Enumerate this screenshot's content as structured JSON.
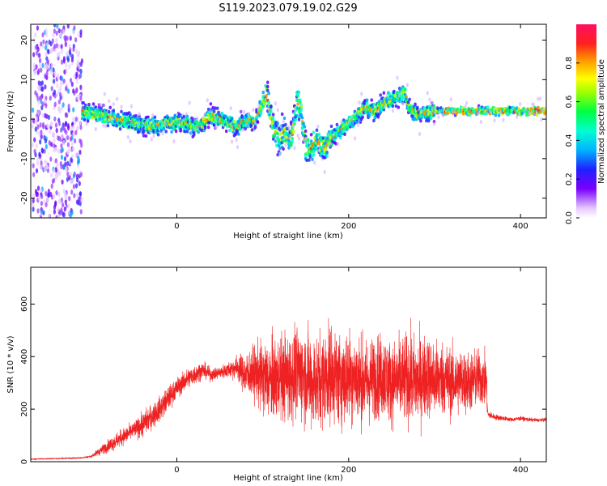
{
  "title": "S119.2023.079.19.02.G29",
  "colors": {
    "snr_line": "#ee2222",
    "axis": "#000000",
    "background": "#ffffff"
  },
  "chart_data": [
    {
      "type": "heatmap",
      "xlabel": "Height of straight line (km)",
      "ylabel": "Frequency (Hz)",
      "xlim": [
        -170,
        430
      ],
      "ylim": [
        -25,
        24
      ],
      "xticks": [
        0,
        200,
        400
      ],
      "yticks": [
        -20,
        -10,
        0,
        10,
        20
      ],
      "colorbar": {
        "label": "Normalized spectral amplitude",
        "ticks": [
          0.0,
          0.2,
          0.4,
          0.6,
          0.8
        ],
        "range": [
          0.0,
          1.0
        ],
        "colormap": "rainbow (purple-blue-cyan-green-yellow-red-magenta)"
      },
      "ridge": {
        "x": [
          -110,
          -90,
          -70,
          -50,
          -30,
          -10,
          0,
          10,
          20,
          30,
          40,
          50,
          60,
          70,
          80,
          90,
          100,
          105,
          110,
          115,
          120,
          125,
          130,
          135,
          140,
          145,
          150,
          155,
          160,
          165,
          170,
          180,
          190,
          200,
          210,
          220,
          230,
          240,
          250,
          260,
          265,
          270,
          280,
          300,
          320,
          340,
          360,
          380,
          400,
          430
        ],
        "y": [
          2,
          1,
          0,
          -1,
          -2,
          -1,
          -1,
          -1,
          -2,
          -1,
          1,
          0,
          -1,
          -2,
          0,
          -1,
          4,
          6,
          0,
          -4,
          -5,
          -3,
          -6,
          -3,
          5,
          2,
          -7,
          -8,
          -6,
          -6,
          -7,
          -5,
          -3,
          -1,
          1,
          3,
          2,
          4,
          5,
          6,
          7,
          3,
          1,
          2,
          2,
          2,
          2,
          2,
          2,
          2
        ]
      }
    },
    {
      "type": "line",
      "xlabel": "Height of straight line (km)",
      "ylabel": "SNR (10 * v/v)",
      "xlim": [
        -170,
        430
      ],
      "ylim": [
        0,
        740
      ],
      "xticks": [
        0,
        200,
        400
      ],
      "yticks": [
        0,
        200,
        400,
        600
      ],
      "series": [
        {
          "x": [
            -170,
            -140,
            -110,
            -100,
            -90,
            -80,
            -70,
            -60,
            -50,
            -40,
            -30,
            -20,
            -10,
            0,
            10,
            20,
            30,
            40,
            50,
            60,
            70,
            80,
            90,
            100,
            110,
            120,
            130,
            140,
            150,
            160,
            170,
            180,
            190,
            200,
            210,
            220,
            230,
            240,
            250,
            260,
            270,
            280,
            290,
            300,
            310,
            320,
            330,
            340,
            350,
            360,
            362,
            370,
            380,
            390,
            400,
            410,
            420,
            430
          ],
          "y": [
            10,
            12,
            15,
            20,
            40,
            60,
            80,
            100,
            120,
            140,
            170,
            200,
            240,
            280,
            310,
            330,
            350,
            330,
            340,
            350,
            360,
            330,
            340,
            320,
            310,
            330,
            320,
            340,
            330,
            300,
            320,
            340,
            310,
            330,
            320,
            300,
            320,
            330,
            300,
            310,
            320,
            300,
            330,
            310,
            320,
            300,
            310,
            300,
            320,
            310,
            180,
            170,
            165,
            160,
            165,
            160,
            158,
            160
          ],
          "spread": [
            3,
            3,
            4,
            6,
            20,
            30,
            40,
            40,
            40,
            60,
            60,
            60,
            60,
            50,
            50,
            50,
            40,
            30,
            30,
            40,
            60,
            100,
            130,
            180,
            200,
            200,
            220,
            220,
            230,
            230,
            230,
            240,
            220,
            230,
            220,
            210,
            200,
            210,
            200,
            210,
            220,
            220,
            200,
            190,
            180,
            170,
            160,
            150,
            140,
            130,
            20,
            15,
            12,
            10,
            10,
            10,
            8,
            8
          ]
        }
      ]
    }
  ]
}
